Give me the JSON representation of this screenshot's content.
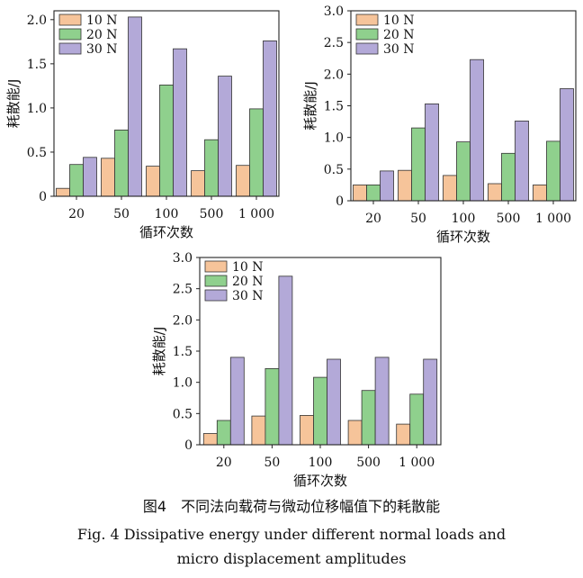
{
  "colors": {
    "series_10N": "#f6c49a",
    "series_20N": "#8fd08d",
    "series_30N": "#b3a9d8"
  },
  "chart_data": [
    {
      "type": "bar",
      "panel": "top-left",
      "categories": [
        "20",
        "50",
        "100",
        "500",
        "1 000"
      ],
      "series": [
        {
          "name": "10 N",
          "values": [
            0.09,
            0.43,
            0.34,
            0.29,
            0.35
          ]
        },
        {
          "name": "20 N",
          "values": [
            0.36,
            0.75,
            1.26,
            0.64,
            0.99
          ]
        },
        {
          "name": "30 N",
          "values": [
            0.44,
            2.03,
            1.67,
            1.36,
            1.76
          ]
        }
      ],
      "xlabel": "循环次数",
      "ylabel": "耗散能/J",
      "ylim": [
        0,
        2.1
      ],
      "yticks": [
        0,
        0.5,
        1.0,
        1.5,
        2.0
      ],
      "ytick_labels": [
        "0",
        "0.5",
        "1.0",
        "1.5",
        "2.0"
      ],
      "legend": "top-left"
    },
    {
      "type": "bar",
      "panel": "top-right",
      "categories": [
        "20",
        "50",
        "100",
        "500",
        "1 000"
      ],
      "series": [
        {
          "name": "10 N",
          "values": [
            0.25,
            0.48,
            0.4,
            0.27,
            0.25
          ]
        },
        {
          "name": "20 N",
          "values": [
            0.25,
            1.15,
            0.93,
            0.75,
            0.94
          ]
        },
        {
          "name": "30 N",
          "values": [
            0.47,
            1.53,
            2.23,
            1.26,
            1.77
          ]
        }
      ],
      "xlabel": "循环次数",
      "ylabel": "耗散能/J",
      "ylim": [
        0,
        3.0
      ],
      "yticks": [
        0,
        0.5,
        1.0,
        1.5,
        2.0,
        2.5,
        3.0
      ],
      "ytick_labels": [
        "0",
        "0.5",
        "1.0",
        "1.5",
        "2.0",
        "2.5",
        "3.0"
      ],
      "legend": "top-left"
    },
    {
      "type": "bar",
      "panel": "bottom-center",
      "categories": [
        "20",
        "50",
        "100",
        "500",
        "1 000"
      ],
      "series": [
        {
          "name": "10 N",
          "values": [
            0.18,
            0.46,
            0.47,
            0.39,
            0.33
          ]
        },
        {
          "name": "20 N",
          "values": [
            0.39,
            1.22,
            1.08,
            0.87,
            0.81
          ]
        },
        {
          "name": "30 N",
          "values": [
            1.4,
            2.7,
            1.37,
            1.4,
            1.37
          ]
        }
      ],
      "xlabel": "循环次数",
      "ylabel": "耗散能/J",
      "ylim": [
        0,
        3.0
      ],
      "yticks": [
        0,
        0.5,
        1.0,
        1.5,
        2.0,
        2.5,
        3.0
      ],
      "ytick_labels": [
        "0",
        "0.5",
        "1.0",
        "1.5",
        "2.0",
        "2.5",
        "3.0"
      ],
      "legend": "top-left"
    }
  ],
  "caption": {
    "cn": "图4　不同法向载荷与微动位移幅值下的耗散能",
    "en_line1": "Fig. 4  Dissipative energy under different normal loads and",
    "en_line2": "micro displacement amplitudes"
  }
}
